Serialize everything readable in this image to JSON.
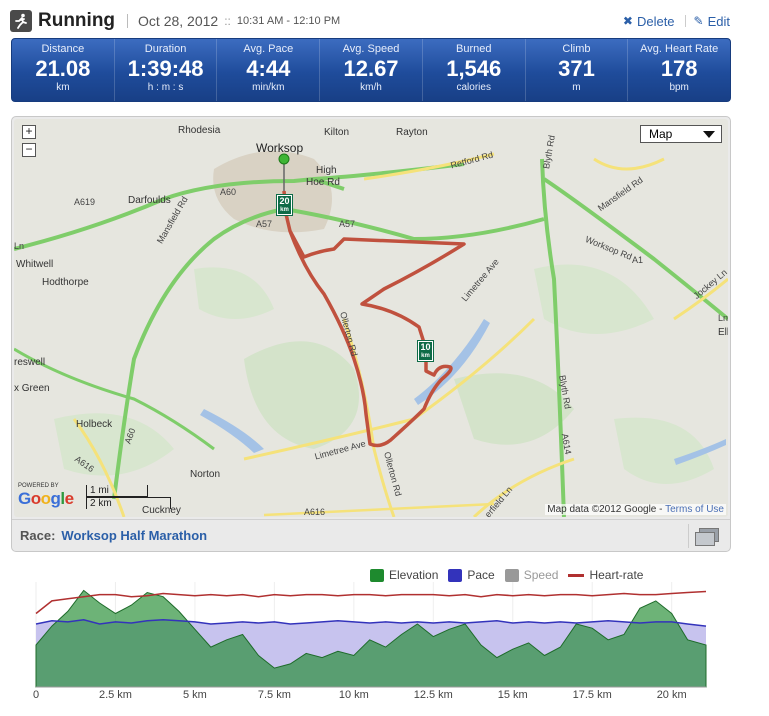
{
  "header": {
    "title": "Running",
    "date": "Oct 28, 2012",
    "sep": "::",
    "time": "10:31 AM - 12:10 PM",
    "delete_label": "Delete",
    "edit_label": "Edit",
    "icons": {
      "activity": "runner-icon",
      "delete": "x-icon",
      "edit": "pencil-icon"
    }
  },
  "stats": [
    {
      "label": "Distance",
      "value": "21.08",
      "unit": "km"
    },
    {
      "label": "Duration",
      "value": "1:39:48",
      "unit": "h : m : s"
    },
    {
      "label": "Avg. Pace",
      "value": "4:44",
      "unit": "min/km"
    },
    {
      "label": "Avg. Speed",
      "value": "12.67",
      "unit": "km/h"
    },
    {
      "label": "Burned",
      "value": "1,546",
      "unit": "calories"
    },
    {
      "label": "Climb",
      "value": "371",
      "unit": "m"
    },
    {
      "label": "Avg. Heart Rate",
      "value": "178",
      "unit": "bpm"
    }
  ],
  "map": {
    "zoom_in": "+",
    "zoom_out": "−",
    "map_type": "Map",
    "places": [
      "Rhodesia",
      "Worksop",
      "Kilton",
      "Rayton",
      "High",
      "Hoe Rd",
      "Darfoulds",
      "Whitwell",
      "Hodthorpe",
      "reswell",
      "x Green",
      "Holbeck",
      "Norton",
      "Cuckney",
      "Elk"
    ],
    "roads": [
      "A60",
      "A619",
      "Mansfield Rd",
      "A57",
      "A57",
      "Retford Rd",
      "Blyth Rd",
      "Mansfield Rd",
      "Worksop Rd",
      "A1",
      "Jockey Ln",
      "Limetree Ave",
      "Ollerton Rd",
      "A60",
      "A616",
      "Limetree Ave",
      "Ollerton Rd",
      "Blyth Rd",
      "A614",
      "A616",
      "erfield Ln",
      "Ln",
      "Ln"
    ],
    "markers": [
      {
        "num": "20",
        "unit": "km"
      },
      {
        "num": "10",
        "unit": "km"
      }
    ],
    "powered_by": "POWERED BY",
    "google": "Google",
    "scale_mi": "1 mi",
    "scale_km": "2 km",
    "attribution": "Map data ©2012 Google -",
    "terms": "Terms of Use",
    "colors": {
      "route": "#c0513e",
      "road_major": "#7fcd6a",
      "road_minor": "#f5e27a",
      "water": "#a4c2e6",
      "forest": "#cfe0c4"
    }
  },
  "race": {
    "label": "Race:",
    "value": "Worksop Half Marathon",
    "fullscreen_icon": "fullscreen-icon"
  },
  "chart_data": {
    "type": "area",
    "legend": [
      {
        "name": "Elevation",
        "color": "#1e8a2e",
        "kind": "swatch"
      },
      {
        "name": "Pace",
        "color": "#3333bb",
        "kind": "swatch"
      },
      {
        "name": "Speed",
        "color": "#999999",
        "kind": "swatch"
      },
      {
        "name": "Heart-rate",
        "color": "#b03030",
        "kind": "line"
      }
    ],
    "x_ticks": [
      "0",
      "2.5 km",
      "5 km",
      "7.5 km",
      "10 km",
      "12.5 km",
      "15 km",
      "17.5 km",
      "20 km"
    ],
    "x_tick_values": [
      0,
      2.5,
      5,
      7.5,
      10,
      12.5,
      15,
      17.5,
      20
    ],
    "xlim": [
      0,
      21.08
    ],
    "x": [
      0,
      0.5,
      1,
      1.5,
      2,
      2.5,
      3,
      3.5,
      4,
      4.5,
      5,
      5.5,
      6,
      6.5,
      7,
      7.5,
      8,
      8.5,
      9,
      9.5,
      10,
      10.5,
      11,
      11.5,
      12,
      12.5,
      13,
      13.5,
      14,
      14.5,
      15,
      15.5,
      16,
      16.5,
      17,
      17.5,
      18,
      18.5,
      19,
      19.5,
      20,
      20.5,
      21.08
    ],
    "series": [
      {
        "name": "Elevation",
        "values": [
          40,
          58,
          72,
          92,
          80,
          70,
          78,
          90,
          86,
          72,
          55,
          38,
          45,
          50,
          30,
          18,
          22,
          32,
          28,
          34,
          30,
          45,
          38,
          50,
          60,
          48,
          55,
          60,
          40,
          28,
          36,
          42,
          30,
          38,
          60,
          56,
          45,
          50,
          75,
          82,
          70,
          45,
          40
        ]
      },
      {
        "name": "Pace",
        "values": [
          60,
          63,
          62,
          64,
          60,
          62,
          61,
          63,
          64,
          63,
          62,
          60,
          61,
          62,
          61,
          62,
          60,
          61,
          62,
          63,
          62,
          61,
          62,
          61,
          62,
          61,
          62,
          61,
          62,
          63,
          61,
          62,
          61,
          62,
          61,
          62,
          63,
          62,
          61,
          62,
          62,
          60,
          58
        ]
      },
      {
        "name": "Heart-rate",
        "values": [
          70,
          82,
          84,
          86,
          88,
          88,
          86,
          87,
          89,
          88,
          87,
          88,
          87,
          88,
          86,
          88,
          87,
          88,
          88,
          87,
          88,
          88,
          87,
          88,
          88,
          88,
          87,
          88,
          86,
          88,
          87,
          88,
          87,
          88,
          88,
          87,
          88,
          89,
          88,
          88,
          89,
          90,
          91
        ]
      }
    ],
    "ylim": [
      0,
      100
    ]
  }
}
